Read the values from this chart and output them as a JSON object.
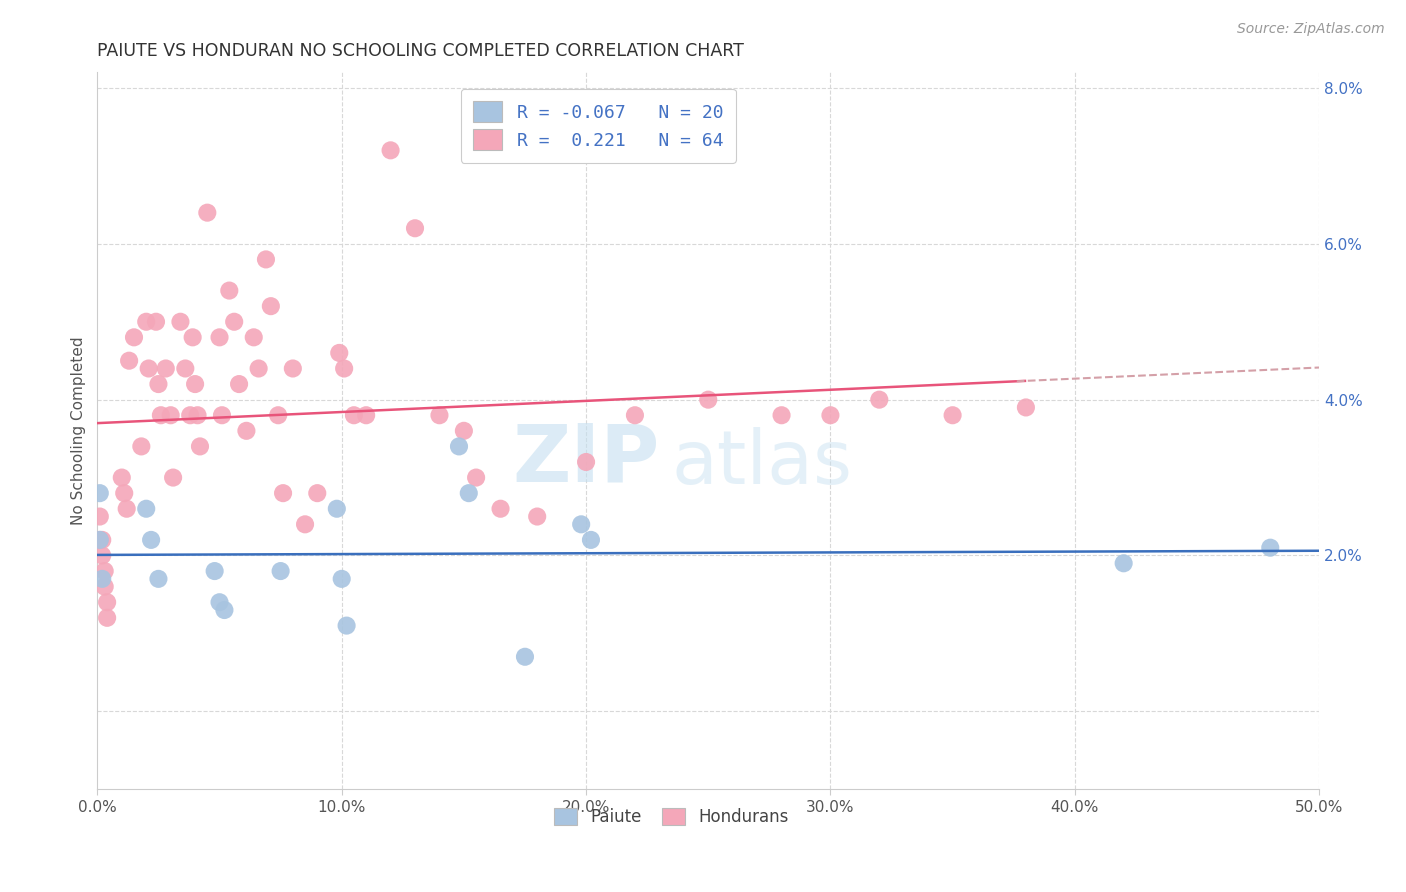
{
  "title": "PAIUTE VS HONDURAN NO SCHOOLING COMPLETED CORRELATION CHART",
  "source": "Source: ZipAtlas.com",
  "ylabel": "No Schooling Completed",
  "watermark": "ZIPatlas",
  "xlim": [
    0.0,
    0.5
  ],
  "ylim": [
    -0.01,
    0.082
  ],
  "xticks": [
    0.0,
    0.1,
    0.2,
    0.3,
    0.4,
    0.5
  ],
  "xticklabels": [
    "0.0%",
    "10.0%",
    "20.0%",
    "30.0%",
    "40.0%",
    "50.0%"
  ],
  "yticks_right": [
    0.02,
    0.04,
    0.06,
    0.08
  ],
  "yticklabels_right": [
    "2.0%",
    "4.0%",
    "6.0%",
    "8.0%"
  ],
  "paiute_color": "#a8c4e0",
  "honduran_color": "#f4a7b9",
  "paiute_line_color": "#3a6fbd",
  "honduran_line_color": "#e8547a",
  "honduran_dash_color": "#d4a0a8",
  "paiute_R": -0.067,
  "paiute_N": 20,
  "honduran_R": 0.221,
  "honduran_N": 64,
  "background_color": "#ffffff",
  "grid_color": "#d8d8d8",
  "title_color": "#333333",
  "axis_label_color": "#555555",
  "right_tick_color": "#4472c4",
  "legend_text_color": "#4472c4",
  "paiute_x": [
    0.001,
    0.001,
    0.002,
    0.02,
    0.022,
    0.025,
    0.048,
    0.05,
    0.052,
    0.075,
    0.098,
    0.1,
    0.102,
    0.148,
    0.152,
    0.175,
    0.198,
    0.202,
    0.42,
    0.48
  ],
  "paiute_y": [
    0.028,
    0.022,
    0.017,
    0.026,
    0.022,
    0.017,
    0.018,
    0.014,
    0.013,
    0.018,
    0.026,
    0.017,
    0.011,
    0.034,
    0.028,
    0.007,
    0.024,
    0.022,
    0.019,
    0.021
  ],
  "honduran_x": [
    0.001,
    0.001,
    0.002,
    0.002,
    0.003,
    0.003,
    0.004,
    0.004,
    0.01,
    0.011,
    0.012,
    0.013,
    0.015,
    0.018,
    0.02,
    0.021,
    0.024,
    0.025,
    0.026,
    0.028,
    0.03,
    0.031,
    0.034,
    0.036,
    0.038,
    0.039,
    0.04,
    0.041,
    0.042,
    0.045,
    0.05,
    0.051,
    0.054,
    0.056,
    0.058,
    0.061,
    0.064,
    0.066,
    0.069,
    0.071,
    0.074,
    0.076,
    0.08,
    0.085,
    0.09,
    0.099,
    0.101,
    0.105,
    0.11,
    0.12,
    0.13,
    0.14,
    0.15,
    0.155,
    0.165,
    0.18,
    0.2,
    0.22,
    0.25,
    0.28,
    0.3,
    0.32,
    0.35,
    0.38
  ],
  "honduran_y": [
    0.025,
    0.022,
    0.022,
    0.02,
    0.018,
    0.016,
    0.014,
    0.012,
    0.03,
    0.028,
    0.026,
    0.045,
    0.048,
    0.034,
    0.05,
    0.044,
    0.05,
    0.042,
    0.038,
    0.044,
    0.038,
    0.03,
    0.05,
    0.044,
    0.038,
    0.048,
    0.042,
    0.038,
    0.034,
    0.064,
    0.048,
    0.038,
    0.054,
    0.05,
    0.042,
    0.036,
    0.048,
    0.044,
    0.058,
    0.052,
    0.038,
    0.028,
    0.044,
    0.024,
    0.028,
    0.046,
    0.044,
    0.038,
    0.038,
    0.072,
    0.062,
    0.038,
    0.036,
    0.03,
    0.026,
    0.025,
    0.032,
    0.038,
    0.04,
    0.038,
    0.038,
    0.04,
    0.038,
    0.039
  ]
}
